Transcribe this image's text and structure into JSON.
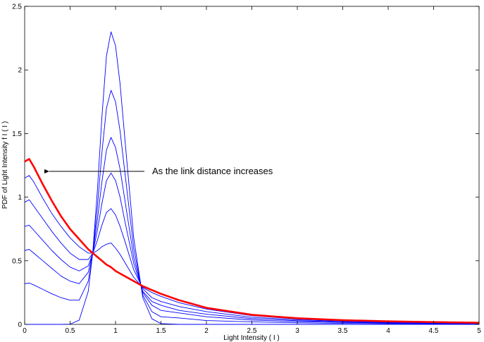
{
  "chart_data": {
    "type": "line",
    "x_label": "Light Intensity ( I )",
    "y_label": "PDF of Light Intensity f I ( I )",
    "annotation": "As the link distance increases",
    "xlim": [
      0,
      5
    ],
    "ylim": [
      0,
      2.5
    ],
    "xticks": [
      0,
      0.5,
      1,
      1.5,
      2,
      2.5,
      3,
      3.5,
      4,
      4.5,
      5
    ],
    "yticks": [
      0,
      0.5,
      1,
      1.5,
      2,
      2.5
    ],
    "x": [
      0,
      0.05,
      0.1,
      0.2,
      0.3,
      0.4,
      0.5,
      0.6,
      0.7,
      0.75,
      0.8,
      0.85,
      0.9,
      0.95,
      1.0,
      1.05,
      1.1,
      1.2,
      1.3,
      1.4,
      1.5,
      1.7,
      2.0,
      2.5,
      3,
      3.5,
      4,
      4.5,
      5
    ],
    "series": [
      {
        "color": "#0000ff",
        "values": [
          0,
          0,
          0,
          0,
          0,
          0,
          0.002,
          0.033,
          0.26,
          0.57,
          1.05,
          1.63,
          2.11,
          2.3,
          2.19,
          1.89,
          1.48,
          0.68,
          0.21,
          0.044,
          0.006,
          0,
          0,
          0,
          0,
          0,
          0,
          0,
          0
        ]
      },
      {
        "color": "#0000ff",
        "values": [
          0.32,
          0.325,
          0.31,
          0.275,
          0.24,
          0.21,
          0.19,
          0.19,
          0.34,
          0.57,
          0.92,
          1.35,
          1.7,
          1.84,
          1.75,
          1.52,
          1.21,
          0.6,
          0.23,
          0.1,
          0.06,
          0.05,
          0.03,
          0.02,
          0.012,
          0.008,
          0.006,
          0.005,
          0.003
        ]
      },
      {
        "color": "#0000ff",
        "values": [
          0.58,
          0.59,
          0.56,
          0.5,
          0.44,
          0.38,
          0.34,
          0.32,
          0.41,
          0.57,
          0.82,
          1.12,
          1.37,
          1.47,
          1.39,
          1.22,
          0.99,
          0.53,
          0.25,
          0.15,
          0.11,
          0.09,
          0.06,
          0.034,
          0.022,
          0.015,
          0.011,
          0.008,
          0.006
        ]
      },
      {
        "color": "#0000ff",
        "values": [
          0.77,
          0.78,
          0.74,
          0.66,
          0.58,
          0.51,
          0.45,
          0.42,
          0.46,
          0.56,
          0.74,
          0.95,
          1.13,
          1.19,
          1.13,
          1.0,
          0.82,
          0.48,
          0.26,
          0.18,
          0.15,
          0.11,
          0.08,
          0.045,
          0.029,
          0.02,
          0.014,
          0.011,
          0.008
        ]
      },
      {
        "color": "#0000ff",
        "values": [
          0.96,
          0.98,
          0.93,
          0.83,
          0.73,
          0.64,
          0.56,
          0.51,
          0.51,
          0.56,
          0.66,
          0.78,
          0.88,
          0.91,
          0.86,
          0.77,
          0.66,
          0.43,
          0.28,
          0.21,
          0.18,
          0.14,
          0.1,
          0.056,
          0.036,
          0.025,
          0.018,
          0.014,
          0.01
        ]
      },
      {
        "color": "#0000ff",
        "values": [
          1.15,
          1.17,
          1.12,
          0.99,
          0.87,
          0.77,
          0.68,
          0.61,
          0.56,
          0.56,
          0.58,
          0.61,
          0.63,
          0.64,
          0.6,
          0.55,
          0.49,
          0.37,
          0.29,
          0.25,
          0.22,
          0.17,
          0.12,
          0.068,
          0.043,
          0.03,
          0.022,
          0.016,
          0.012
        ]
      },
      {
        "color": "#ff0000",
        "values": [
          1.28,
          1.3,
          1.24,
          1.1,
          0.97,
          0.85,
          0.75,
          0.67,
          0.59,
          0.56,
          0.53,
          0.5,
          0.47,
          0.45,
          0.42,
          0.4,
          0.38,
          0.34,
          0.3,
          0.27,
          0.24,
          0.19,
          0.13,
          0.075,
          0.048,
          0.033,
          0.024,
          0.018,
          0.013
        ]
      }
    ]
  }
}
